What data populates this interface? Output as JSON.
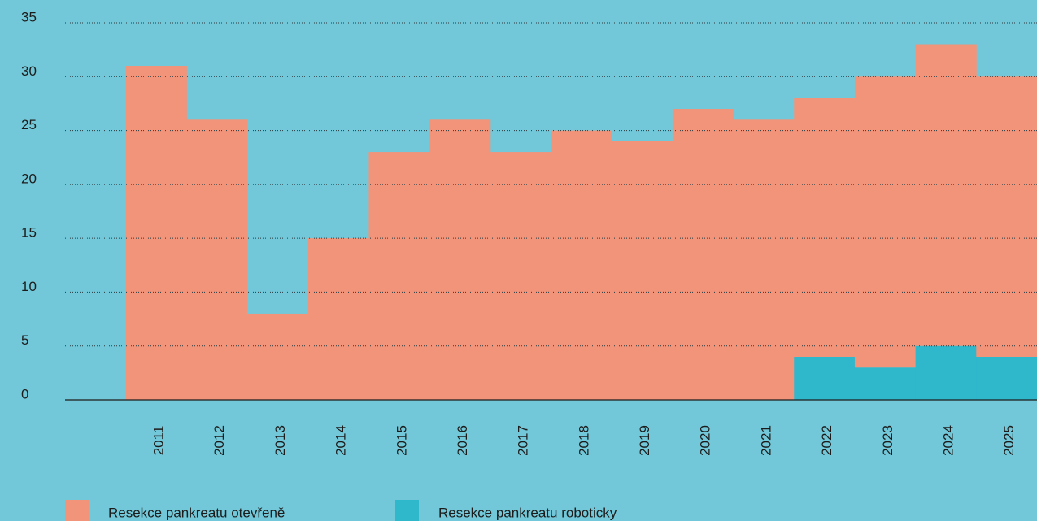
{
  "chart_data": {
    "type": "bar",
    "stacked": true,
    "categories": [
      null,
      "2011",
      "2012",
      "2013",
      "2014",
      "2015",
      "2016",
      "2017",
      "2018",
      "2019",
      "2020",
      "2021",
      "2022",
      "2023",
      "2024",
      "2025"
    ],
    "series": [
      {
        "name": "Resekce pankreatu otevřeně",
        "color": "#f2947a",
        "values": [
          null,
          31,
          26,
          8,
          15,
          23,
          26,
          23,
          25,
          24,
          27,
          26,
          24,
          27,
          28,
          26
        ]
      },
      {
        "name": "Resekce pankreatu roboticky",
        "color": "#2fb7cc",
        "values": [
          null,
          0,
          0,
          0,
          0,
          0,
          0,
          0,
          0,
          0,
          0,
          0,
          4,
          3,
          5,
          4
        ]
      }
    ],
    "ylim": [
      0,
      35
    ],
    "yticks": [
      0,
      5,
      10,
      15,
      20,
      25,
      30,
      35
    ],
    "grid": true
  }
}
